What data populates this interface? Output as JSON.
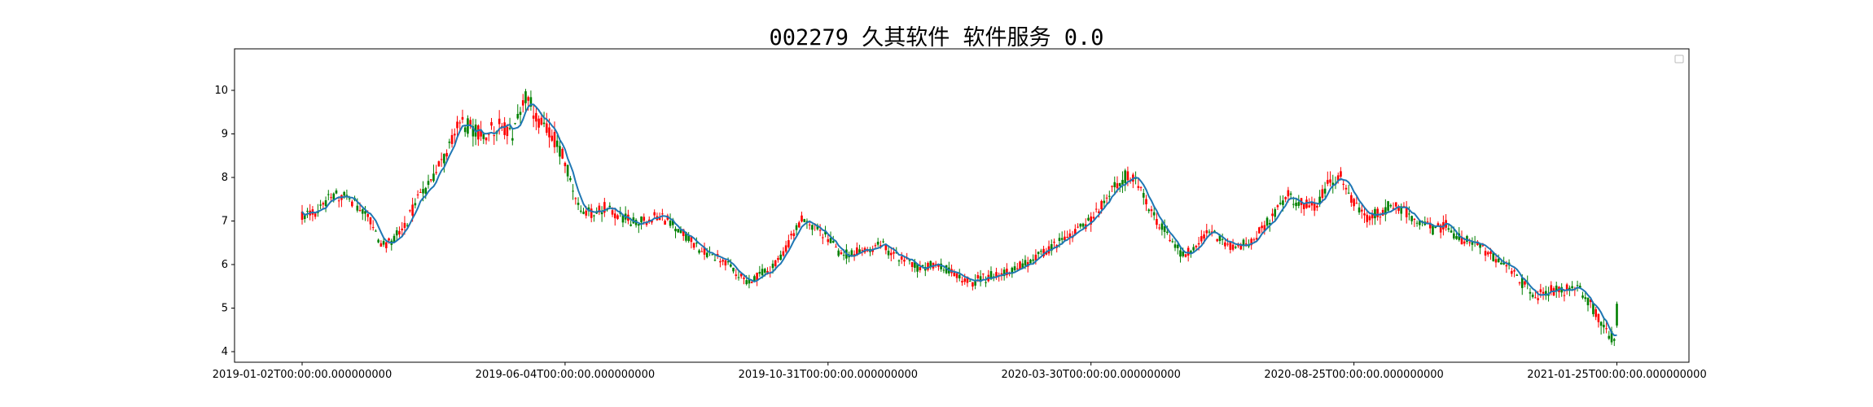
{
  "title": "002279 久其软件 软件服务 0.0",
  "chart_data": {
    "type": "candlestick",
    "title": "002279 久其软件 软件服务 0.0",
    "xlabel": "",
    "ylabel": "",
    "ylim": [
      3.7,
      10.9
    ],
    "y_ticks": [
      4,
      5,
      6,
      7,
      8,
      9,
      10
    ],
    "x_tick_labels": [
      "2019-01-02T00:00:00.000000000",
      "2019-06-04T00:00:00.000000000",
      "2019-10-31T00:00:00.000000000",
      "2020-03-30T00:00:00.000000000",
      "2020-08-25T00:00:00.000000000",
      "2021-01-25T00:00:00.000000000"
    ],
    "x_tick_positions": [
      0,
      100,
      200,
      300,
      400,
      500
    ],
    "n_bars": 501,
    "legend": "top-right (empty box)",
    "grid": false,
    "colors": {
      "up": "#ff0000",
      "down": "#008000",
      "ma": "#1f77b4"
    },
    "anchors": [
      [
        0,
        7.1
      ],
      [
        5,
        7.2
      ],
      [
        10,
        7.5
      ],
      [
        15,
        7.6
      ],
      [
        20,
        7.4
      ],
      [
        25,
        7.1
      ],
      [
        30,
        6.4
      ],
      [
        35,
        6.6
      ],
      [
        40,
        7.0
      ],
      [
        45,
        7.6
      ],
      [
        50,
        8.0
      ],
      [
        55,
        8.6
      ],
      [
        60,
        9.3
      ],
      [
        65,
        9.1
      ],
      [
        70,
        9.0
      ],
      [
        75,
        9.2
      ],
      [
        80,
        8.9
      ],
      [
        85,
        9.9
      ],
      [
        90,
        9.3
      ],
      [
        95,
        9.0
      ],
      [
        100,
        8.4
      ],
      [
        105,
        7.3
      ],
      [
        110,
        7.2
      ],
      [
        115,
        7.3
      ],
      [
        120,
        7.1
      ],
      [
        125,
        7.0
      ],
      [
        130,
        7.0
      ],
      [
        135,
        7.1
      ],
      [
        140,
        7.0
      ],
      [
        145,
        6.7
      ],
      [
        150,
        6.4
      ],
      [
        155,
        6.2
      ],
      [
        160,
        6.1
      ],
      [
        165,
        5.8
      ],
      [
        170,
        5.6
      ],
      [
        175,
        5.8
      ],
      [
        180,
        6.0
      ],
      [
        185,
        6.5
      ],
      [
        190,
        7.0
      ],
      [
        195,
        6.9
      ],
      [
        200,
        6.6
      ],
      [
        205,
        6.2
      ],
      [
        210,
        6.3
      ],
      [
        215,
        6.3
      ],
      [
        220,
        6.5
      ],
      [
        225,
        6.2
      ],
      [
        230,
        6.1
      ],
      [
        235,
        5.9
      ],
      [
        240,
        6.0
      ],
      [
        245,
        5.9
      ],
      [
        250,
        5.7
      ],
      [
        255,
        5.6
      ],
      [
        260,
        5.7
      ],
      [
        265,
        5.8
      ],
      [
        270,
        5.9
      ],
      [
        275,
        6.0
      ],
      [
        280,
        6.2
      ],
      [
        285,
        6.4
      ],
      [
        290,
        6.6
      ],
      [
        295,
        6.8
      ],
      [
        300,
        7.0
      ],
      [
        305,
        7.5
      ],
      [
        310,
        7.9
      ],
      [
        315,
        8.1
      ],
      [
        320,
        7.6
      ],
      [
        325,
        7.0
      ],
      [
        330,
        6.6
      ],
      [
        335,
        6.2
      ],
      [
        340,
        6.4
      ],
      [
        345,
        6.8
      ],
      [
        350,
        6.5
      ],
      [
        355,
        6.4
      ],
      [
        360,
        6.5
      ],
      [
        365,
        6.8
      ],
      [
        370,
        7.2
      ],
      [
        375,
        7.6
      ],
      [
        380,
        7.4
      ],
      [
        385,
        7.3
      ],
      [
        390,
        7.8
      ],
      [
        395,
        8.0
      ],
      [
        400,
        7.4
      ],
      [
        405,
        7.1
      ],
      [
        410,
        7.2
      ],
      [
        415,
        7.4
      ],
      [
        420,
        7.2
      ],
      [
        425,
        7.0
      ],
      [
        430,
        6.8
      ],
      [
        435,
        6.9
      ],
      [
        440,
        6.6
      ],
      [
        445,
        6.5
      ],
      [
        450,
        6.3
      ],
      [
        455,
        6.1
      ],
      [
        460,
        5.9
      ],
      [
        465,
        5.5
      ],
      [
        470,
        5.3
      ],
      [
        475,
        5.4
      ],
      [
        480,
        5.4
      ],
      [
        485,
        5.5
      ],
      [
        490,
        5.1
      ],
      [
        495,
        4.5
      ],
      [
        500,
        4.2
      ],
      [
        502,
        4.5
      ]
    ]
  }
}
